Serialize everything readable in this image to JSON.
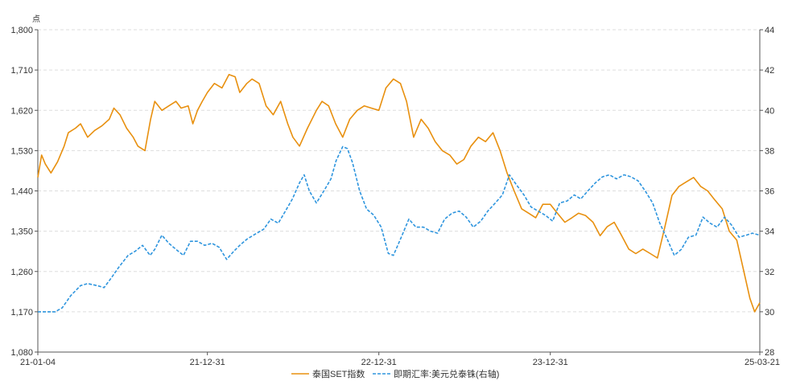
{
  "chart_data": {
    "type": "line",
    "title": "",
    "left_axis": {
      "unit": "点",
      "ylim": [
        1080,
        1800
      ],
      "ticks": [
        1080,
        1170,
        1260,
        1350,
        1440,
        1530,
        1620,
        1710,
        1800
      ],
      "tick_labels": [
        "1,080",
        "1,170",
        "1,260",
        "1,350",
        "1,440",
        "1,530",
        "1,620",
        "1,710",
        "1,800"
      ]
    },
    "right_axis": {
      "ylim": [
        28,
        44
      ],
      "ticks": [
        28,
        30,
        32,
        34,
        36,
        38,
        40,
        42,
        44
      ],
      "tick_labels": [
        "28",
        "30",
        "32",
        "34",
        "36",
        "38",
        "40",
        "42",
        "44"
      ]
    },
    "x_axis": {
      "range": [
        "2021-01-04",
        "2025-03-21"
      ],
      "tick_labels": [
        {
          "date": "2021-01-04",
          "label": "21-01-04"
        },
        {
          "date": "2021-12-31",
          "label": "21-12-31"
        },
        {
          "date": "2022-12-31",
          "label": "22-12-31"
        },
        {
          "date": "2023-12-31",
          "label": "23-12-31"
        },
        {
          "date": "2025-03-21",
          "label": "25-03-21"
        }
      ]
    },
    "grid": "horizontal dashed",
    "legend_position": "bottom-center",
    "series": [
      {
        "name": "泰国SET指数",
        "axis": "left",
        "color": "#E8900F",
        "style": "solid",
        "points": [
          [
            "2021-01-04",
            1470
          ],
          [
            "2021-01-12",
            1520
          ],
          [
            "2021-01-20",
            1500
          ],
          [
            "2021-02-01",
            1480
          ],
          [
            "2021-02-15",
            1505
          ],
          [
            "2021-03-01",
            1540
          ],
          [
            "2021-03-10",
            1570
          ],
          [
            "2021-03-25",
            1580
          ],
          [
            "2021-04-05",
            1590
          ],
          [
            "2021-04-20",
            1560
          ],
          [
            "2021-05-05",
            1575
          ],
          [
            "2021-05-20",
            1585
          ],
          [
            "2021-06-05",
            1600
          ],
          [
            "2021-06-15",
            1625
          ],
          [
            "2021-06-28",
            1610
          ],
          [
            "2021-07-12",
            1580
          ],
          [
            "2021-07-26",
            1560
          ],
          [
            "2021-08-05",
            1540
          ],
          [
            "2021-08-20",
            1530
          ],
          [
            "2021-09-01",
            1600
          ],
          [
            "2021-09-10",
            1640
          ],
          [
            "2021-09-25",
            1620
          ],
          [
            "2021-10-10",
            1630
          ],
          [
            "2021-10-25",
            1640
          ],
          [
            "2021-11-05",
            1625
          ],
          [
            "2021-11-20",
            1630
          ],
          [
            "2021-11-30",
            1590
          ],
          [
            "2021-12-10",
            1620
          ],
          [
            "2021-12-20",
            1640
          ],
          [
            "2021-12-31",
            1660
          ],
          [
            "2022-01-15",
            1680
          ],
          [
            "2022-01-31",
            1670
          ],
          [
            "2022-02-15",
            1700
          ],
          [
            "2022-02-28",
            1695
          ],
          [
            "2022-03-10",
            1660
          ],
          [
            "2022-03-25",
            1680
          ],
          [
            "2022-04-05",
            1690
          ],
          [
            "2022-04-20",
            1680
          ],
          [
            "2022-05-05",
            1630
          ],
          [
            "2022-05-20",
            1610
          ],
          [
            "2022-06-05",
            1640
          ],
          [
            "2022-06-20",
            1590
          ],
          [
            "2022-07-01",
            1560
          ],
          [
            "2022-07-15",
            1540
          ],
          [
            "2022-08-01",
            1580
          ],
          [
            "2022-08-20",
            1620
          ],
          [
            "2022-09-01",
            1640
          ],
          [
            "2022-09-15",
            1630
          ],
          [
            "2022-09-30",
            1590
          ],
          [
            "2022-10-15",
            1560
          ],
          [
            "2022-10-30",
            1600
          ],
          [
            "2022-11-15",
            1620
          ],
          [
            "2022-11-30",
            1630
          ],
          [
            "2022-12-15",
            1625
          ],
          [
            "2022-12-31",
            1620
          ],
          [
            "2023-01-15",
            1670
          ],
          [
            "2023-01-31",
            1690
          ],
          [
            "2023-02-15",
            1680
          ],
          [
            "2023-02-28",
            1640
          ],
          [
            "2023-03-15",
            1560
          ],
          [
            "2023-03-31",
            1600
          ],
          [
            "2023-04-15",
            1580
          ],
          [
            "2023-04-30",
            1550
          ],
          [
            "2023-05-15",
            1530
          ],
          [
            "2023-05-31",
            1520
          ],
          [
            "2023-06-15",
            1500
          ],
          [
            "2023-06-30",
            1510
          ],
          [
            "2023-07-15",
            1540
          ],
          [
            "2023-07-31",
            1560
          ],
          [
            "2023-08-15",
            1550
          ],
          [
            "2023-08-31",
            1570
          ],
          [
            "2023-09-15",
            1530
          ],
          [
            "2023-09-30",
            1480
          ],
          [
            "2023-10-15",
            1440
          ],
          [
            "2023-10-31",
            1400
          ],
          [
            "2023-11-15",
            1390
          ],
          [
            "2023-11-30",
            1380
          ],
          [
            "2023-12-15",
            1410
          ],
          [
            "2023-12-31",
            1410
          ],
          [
            "2024-01-15",
            1390
          ],
          [
            "2024-01-31",
            1370
          ],
          [
            "2024-02-15",
            1380
          ],
          [
            "2024-02-29",
            1390
          ],
          [
            "2024-03-15",
            1385
          ],
          [
            "2024-03-31",
            1370
          ],
          [
            "2024-04-15",
            1340
          ],
          [
            "2024-04-30",
            1360
          ],
          [
            "2024-05-15",
            1370
          ],
          [
            "2024-05-31",
            1340
          ],
          [
            "2024-06-15",
            1310
          ],
          [
            "2024-06-30",
            1300
          ],
          [
            "2024-07-15",
            1310
          ],
          [
            "2024-07-31",
            1300
          ],
          [
            "2024-08-15",
            1290
          ],
          [
            "2024-08-31",
            1360
          ],
          [
            "2024-09-15",
            1430
          ],
          [
            "2024-09-30",
            1450
          ],
          [
            "2024-10-15",
            1460
          ],
          [
            "2024-10-31",
            1470
          ],
          [
            "2024-11-15",
            1450
          ],
          [
            "2024-11-30",
            1440
          ],
          [
            "2024-12-15",
            1420
          ],
          [
            "2024-12-31",
            1400
          ],
          [
            "2025-01-15",
            1350
          ],
          [
            "2025-01-31",
            1330
          ],
          [
            "2025-02-15",
            1260
          ],
          [
            "2025-02-28",
            1200
          ],
          [
            "2025-03-10",
            1170
          ],
          [
            "2025-03-21",
            1190
          ]
        ]
      },
      {
        "name": "即期汇率:美元兑泰铢(右轴)",
        "axis": "right",
        "color": "#2E95DE",
        "style": "dashed",
        "points": [
          [
            "2021-01-04",
            30.0
          ],
          [
            "2021-01-20",
            30.0
          ],
          [
            "2021-02-10",
            30.0
          ],
          [
            "2021-02-25",
            30.2
          ],
          [
            "2021-03-15",
            30.8
          ],
          [
            "2021-04-05",
            31.3
          ],
          [
            "2021-04-20",
            31.4
          ],
          [
            "2021-05-10",
            31.3
          ],
          [
            "2021-05-25",
            31.2
          ],
          [
            "2021-06-10",
            31.7
          ],
          [
            "2021-06-25",
            32.2
          ],
          [
            "2021-07-15",
            32.8
          ],
          [
            "2021-07-30",
            33.0
          ],
          [
            "2021-08-15",
            33.3
          ],
          [
            "2021-08-31",
            32.8
          ],
          [
            "2021-09-10",
            33.1
          ],
          [
            "2021-09-25",
            33.8
          ],
          [
            "2021-10-10",
            33.4
          ],
          [
            "2021-10-25",
            33.1
          ],
          [
            "2021-11-10",
            32.8
          ],
          [
            "2021-11-25",
            33.5
          ],
          [
            "2021-12-10",
            33.5
          ],
          [
            "2021-12-25",
            33.3
          ],
          [
            "2022-01-10",
            33.4
          ],
          [
            "2022-01-25",
            33.2
          ],
          [
            "2022-02-10",
            32.6
          ],
          [
            "2022-02-25",
            33.0
          ],
          [
            "2022-03-10",
            33.3
          ],
          [
            "2022-03-25",
            33.6
          ],
          [
            "2022-04-15",
            33.9
          ],
          [
            "2022-04-30",
            34.1
          ],
          [
            "2022-05-15",
            34.6
          ],
          [
            "2022-05-31",
            34.4
          ],
          [
            "2022-06-15",
            35.0
          ],
          [
            "2022-06-30",
            35.6
          ],
          [
            "2022-07-15",
            36.4
          ],
          [
            "2022-07-25",
            36.8
          ],
          [
            "2022-08-05",
            36.0
          ],
          [
            "2022-08-20",
            35.4
          ],
          [
            "2022-09-05",
            36.0
          ],
          [
            "2022-09-20",
            36.6
          ],
          [
            "2022-10-01",
            37.5
          ],
          [
            "2022-10-15",
            38.2
          ],
          [
            "2022-10-25",
            38.1
          ],
          [
            "2022-11-05",
            37.4
          ],
          [
            "2022-11-20",
            36.0
          ],
          [
            "2022-12-05",
            35.1
          ],
          [
            "2022-12-20",
            34.8
          ],
          [
            "2023-01-05",
            34.2
          ],
          [
            "2023-01-20",
            32.9
          ],
          [
            "2023-01-31",
            32.8
          ],
          [
            "2023-02-15",
            33.6
          ],
          [
            "2023-03-05",
            34.6
          ],
          [
            "2023-03-20",
            34.2
          ],
          [
            "2023-04-05",
            34.2
          ],
          [
            "2023-04-20",
            34.0
          ],
          [
            "2023-05-05",
            33.9
          ],
          [
            "2023-05-20",
            34.6
          ],
          [
            "2023-06-05",
            34.9
          ],
          [
            "2023-06-20",
            35.0
          ],
          [
            "2023-07-05",
            34.7
          ],
          [
            "2023-07-20",
            34.2
          ],
          [
            "2023-08-05",
            34.5
          ],
          [
            "2023-08-20",
            35.0
          ],
          [
            "2023-09-05",
            35.4
          ],
          [
            "2023-09-20",
            35.8
          ],
          [
            "2023-10-05",
            36.8
          ],
          [
            "2023-10-20",
            36.3
          ],
          [
            "2023-11-05",
            35.8
          ],
          [
            "2023-11-20",
            35.2
          ],
          [
            "2023-12-05",
            35.0
          ],
          [
            "2023-12-20",
            34.8
          ],
          [
            "2024-01-05",
            34.5
          ],
          [
            "2024-01-20",
            35.4
          ],
          [
            "2024-02-05",
            35.5
          ],
          [
            "2024-02-20",
            35.8
          ],
          [
            "2024-03-05",
            35.6
          ],
          [
            "2024-03-20",
            36.0
          ],
          [
            "2024-04-05",
            36.4
          ],
          [
            "2024-04-20",
            36.7
          ],
          [
            "2024-05-05",
            36.8
          ],
          [
            "2024-05-20",
            36.6
          ],
          [
            "2024-06-05",
            36.8
          ],
          [
            "2024-06-20",
            36.7
          ],
          [
            "2024-07-05",
            36.5
          ],
          [
            "2024-07-20",
            36.0
          ],
          [
            "2024-08-05",
            35.4
          ],
          [
            "2024-08-20",
            34.4
          ],
          [
            "2024-09-05",
            33.6
          ],
          [
            "2024-09-20",
            32.8
          ],
          [
            "2024-10-05",
            33.1
          ],
          [
            "2024-10-20",
            33.7
          ],
          [
            "2024-11-05",
            33.8
          ],
          [
            "2024-11-20",
            34.7
          ],
          [
            "2024-12-05",
            34.4
          ],
          [
            "2024-12-20",
            34.2
          ],
          [
            "2025-01-05",
            34.7
          ],
          [
            "2025-01-20",
            34.3
          ],
          [
            "2025-02-05",
            33.7
          ],
          [
            "2025-02-20",
            33.8
          ],
          [
            "2025-03-05",
            33.9
          ],
          [
            "2025-03-21",
            33.8
          ]
        ]
      }
    ]
  }
}
